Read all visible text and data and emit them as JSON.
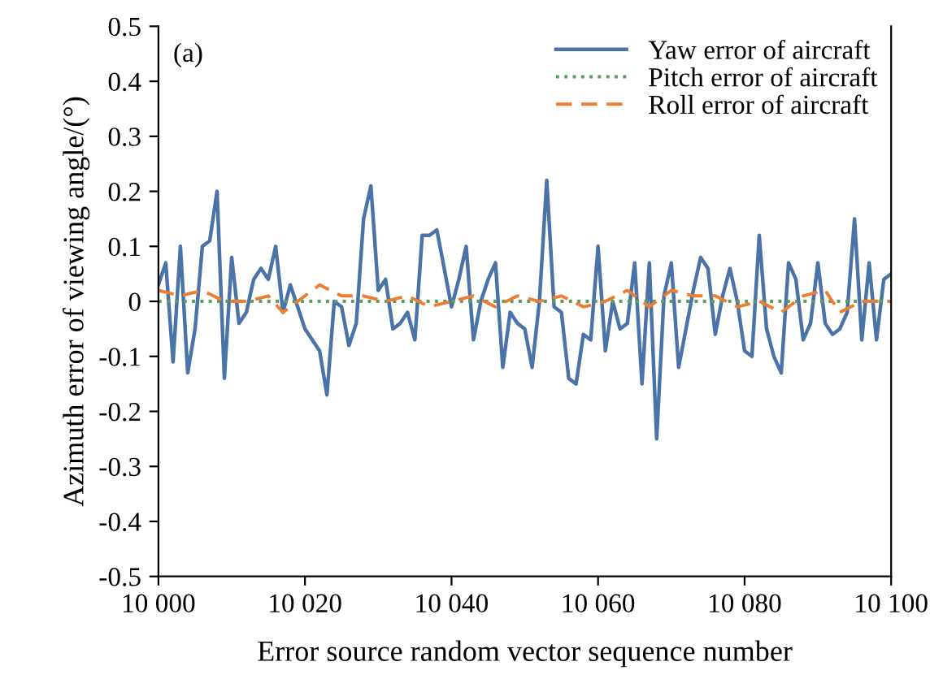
{
  "chart_data": {
    "type": "line",
    "xlabel": "Error source random vector sequence number",
    "ylabel": "Azimuth error of viewing angle/(°)",
    "annotations": [
      "(a)"
    ],
    "xlim": [
      10000,
      10100
    ],
    "xticks": [
      {
        "value": 10000,
        "label": "10 000"
      },
      {
        "value": 10020,
        "label": "10 020"
      },
      {
        "value": 10040,
        "label": "10 040"
      },
      {
        "value": 10060,
        "label": "10 060"
      },
      {
        "value": 10080,
        "label": "10 080"
      },
      {
        "value": 10100,
        "label": "10 100"
      }
    ],
    "ylim": [
      -0.5,
      0.5
    ],
    "yticks": [
      -0.5,
      -0.4,
      -0.3,
      -0.2,
      -0.1,
      0,
      0.1,
      0.2,
      0.3,
      0.4,
      0.5
    ],
    "grid": false,
    "legend": "top right",
    "series": [
      {
        "name": "Yaw error of aircraft",
        "color": "#4a73a8",
        "line_style": "solid",
        "x": [
          10000,
          10001,
          10002,
          10003,
          10004,
          10005,
          10006,
          10007,
          10008,
          10009,
          10010,
          10011,
          10012,
          10013,
          10014,
          10015,
          10016,
          10017,
          10018,
          10019,
          10020,
          10021,
          10022,
          10023,
          10024,
          10025,
          10026,
          10027,
          10028,
          10029,
          10030,
          10031,
          10032,
          10033,
          10034,
          10035,
          10036,
          10037,
          10038,
          10039,
          10040,
          10041,
          10042,
          10043,
          10044,
          10045,
          10046,
          10047,
          10048,
          10049,
          10050,
          10051,
          10052,
          10053,
          10054,
          10055,
          10056,
          10057,
          10058,
          10059,
          10060,
          10061,
          10062,
          10063,
          10064,
          10065,
          10066,
          10067,
          10068,
          10069,
          10070,
          10071,
          10072,
          10073,
          10074,
          10075,
          10076,
          10077,
          10078,
          10079,
          10080,
          10081,
          10082,
          10083,
          10084,
          10085,
          10086,
          10087,
          10088,
          10089,
          10090,
          10091,
          10092,
          10093,
          10094,
          10095,
          10096,
          10097,
          10098,
          10099,
          10100
        ],
        "values": [
          0.03,
          0.07,
          -0.11,
          0.1,
          -0.13,
          -0.05,
          0.1,
          0.11,
          0.2,
          -0.14,
          0.08,
          -0.04,
          -0.02,
          0.04,
          0.06,
          0.04,
          0.1,
          -0.02,
          0.03,
          -0.01,
          -0.05,
          -0.07,
          -0.09,
          -0.17,
          0.0,
          -0.01,
          -0.08,
          -0.04,
          0.15,
          0.21,
          0.02,
          0.04,
          -0.05,
          -0.04,
          -0.02,
          -0.07,
          0.12,
          0.12,
          0.13,
          0.06,
          -0.01,
          0.04,
          0.1,
          -0.07,
          0.0,
          0.04,
          0.07,
          -0.12,
          -0.02,
          -0.04,
          -0.05,
          -0.12,
          0.0,
          0.22,
          -0.01,
          -0.02,
          -0.14,
          -0.15,
          -0.06,
          -0.07,
          0.1,
          -0.09,
          0.0,
          -0.05,
          -0.04,
          0.07,
          -0.15,
          0.07,
          -0.25,
          0.01,
          0.07,
          -0.12,
          -0.05,
          0.02,
          0.08,
          0.06,
          -0.06,
          0.01,
          0.06,
          0.0,
          -0.09,
          -0.1,
          0.12,
          -0.05,
          -0.1,
          -0.13,
          0.07,
          0.04,
          -0.07,
          -0.04,
          0.07,
          -0.04,
          -0.06,
          -0.05,
          -0.02,
          0.15,
          -0.07,
          0.07,
          -0.07,
          0.04,
          0.05
        ]
      },
      {
        "name": "Pitch error of aircraft",
        "color": "#5b9e5b",
        "line_style": "dotted",
        "x": [
          10000,
          10010,
          10020,
          10030,
          10040,
          10050,
          10060,
          10070,
          10080,
          10090,
          10100
        ],
        "values": [
          0,
          0,
          0,
          0,
          0,
          0,
          0,
          0,
          0,
          0,
          0
        ]
      },
      {
        "name": "Roll error of aircraft",
        "color": "#ed7d31",
        "line_style": "dashed",
        "x": [
          10000,
          10003,
          10006,
          10009,
          10012,
          10015,
          10017,
          10019,
          10022,
          10025,
          10028,
          10031,
          10034,
          10037,
          10040,
          10043,
          10046,
          10049,
          10052,
          10055,
          10058,
          10061,
          10064,
          10067,
          10070,
          10073,
          10076,
          10079,
          10082,
          10085,
          10088,
          10091,
          10093,
          10096,
          10100
        ],
        "values": [
          0.02,
          0.01,
          0.02,
          0.0,
          0.0,
          0.01,
          -0.02,
          0.0,
          0.03,
          0.01,
          0.01,
          0.0,
          0.01,
          -0.01,
          0.0,
          0.01,
          -0.01,
          0.01,
          0.0,
          0.01,
          -0.01,
          0.0,
          0.02,
          -0.01,
          0.02,
          0.01,
          0.01,
          -0.01,
          0.0,
          -0.02,
          0.01,
          0.02,
          -0.02,
          0.0,
          0.0
        ]
      }
    ]
  }
}
